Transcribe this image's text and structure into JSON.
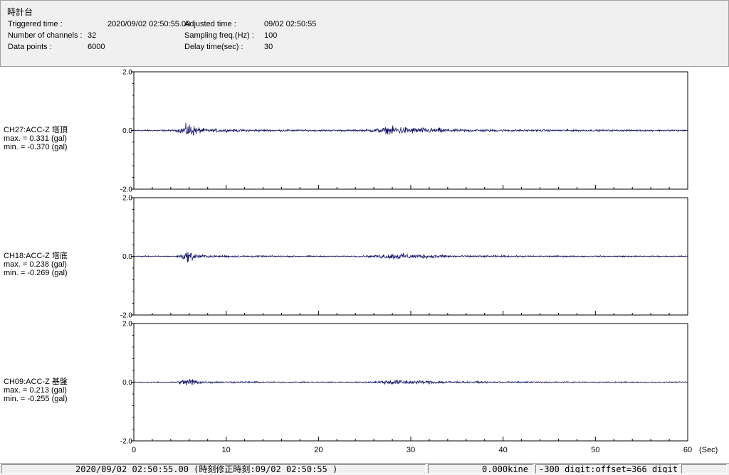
{
  "header": {
    "station": "時計台",
    "triggered_label": "Triggered time :",
    "triggered_value": "2020/09/02 02:50:55.00",
    "channels_label": "Number of channels :",
    "channels_value": "32",
    "datapoints_label": "Data points :",
    "datapoints_value": "6000",
    "adjusted_label": "Adjusted time :",
    "adjusted_value": "09/02 02:50:55",
    "sampling_label": "Sampling freq.(Hz) :",
    "sampling_value": "100",
    "delay_label": "Delay time(sec) :",
    "delay_value": "30"
  },
  "chart_data": {
    "type": "line",
    "x_unit": "(Sec)",
    "xlim": [
      0,
      60
    ],
    "x_ticks": [
      "0",
      "10",
      "20",
      "30",
      "40",
      "50",
      "60"
    ],
    "ylim": [
      -2.0,
      2.0
    ],
    "y_ticks": [
      "2.0",
      "0.0",
      "-2.0"
    ],
    "line_color": "#1a1a6e",
    "grid": false,
    "series": [
      {
        "name": "CH27:ACC-Z 塔頂",
        "max_text": "max. = 0.331 (gal)",
        "min_text": "min. = -0.370 (gal)",
        "max": 0.331,
        "min": -0.37
      },
      {
        "name": "CH18:ACC-Z 塔底",
        "max_text": "max. = 0.238 (gal)",
        "min_text": "min. = -0.269 (gal)",
        "max": 0.238,
        "min": -0.269
      },
      {
        "name": "CH09:ACC-Z 基盤",
        "max_text": "max. = 0.213 (gal)",
        "min_text": "min. = -0.255 (gal)",
        "max": 0.213,
        "min": -0.255
      }
    ]
  },
  "status": {
    "time": "2020/09/02 02:50:55.00 (時刻修正時刻:09/02 02:50:55 )",
    "kine": "0.000kine",
    "digit": "-300 digit:offset=366 digit"
  }
}
